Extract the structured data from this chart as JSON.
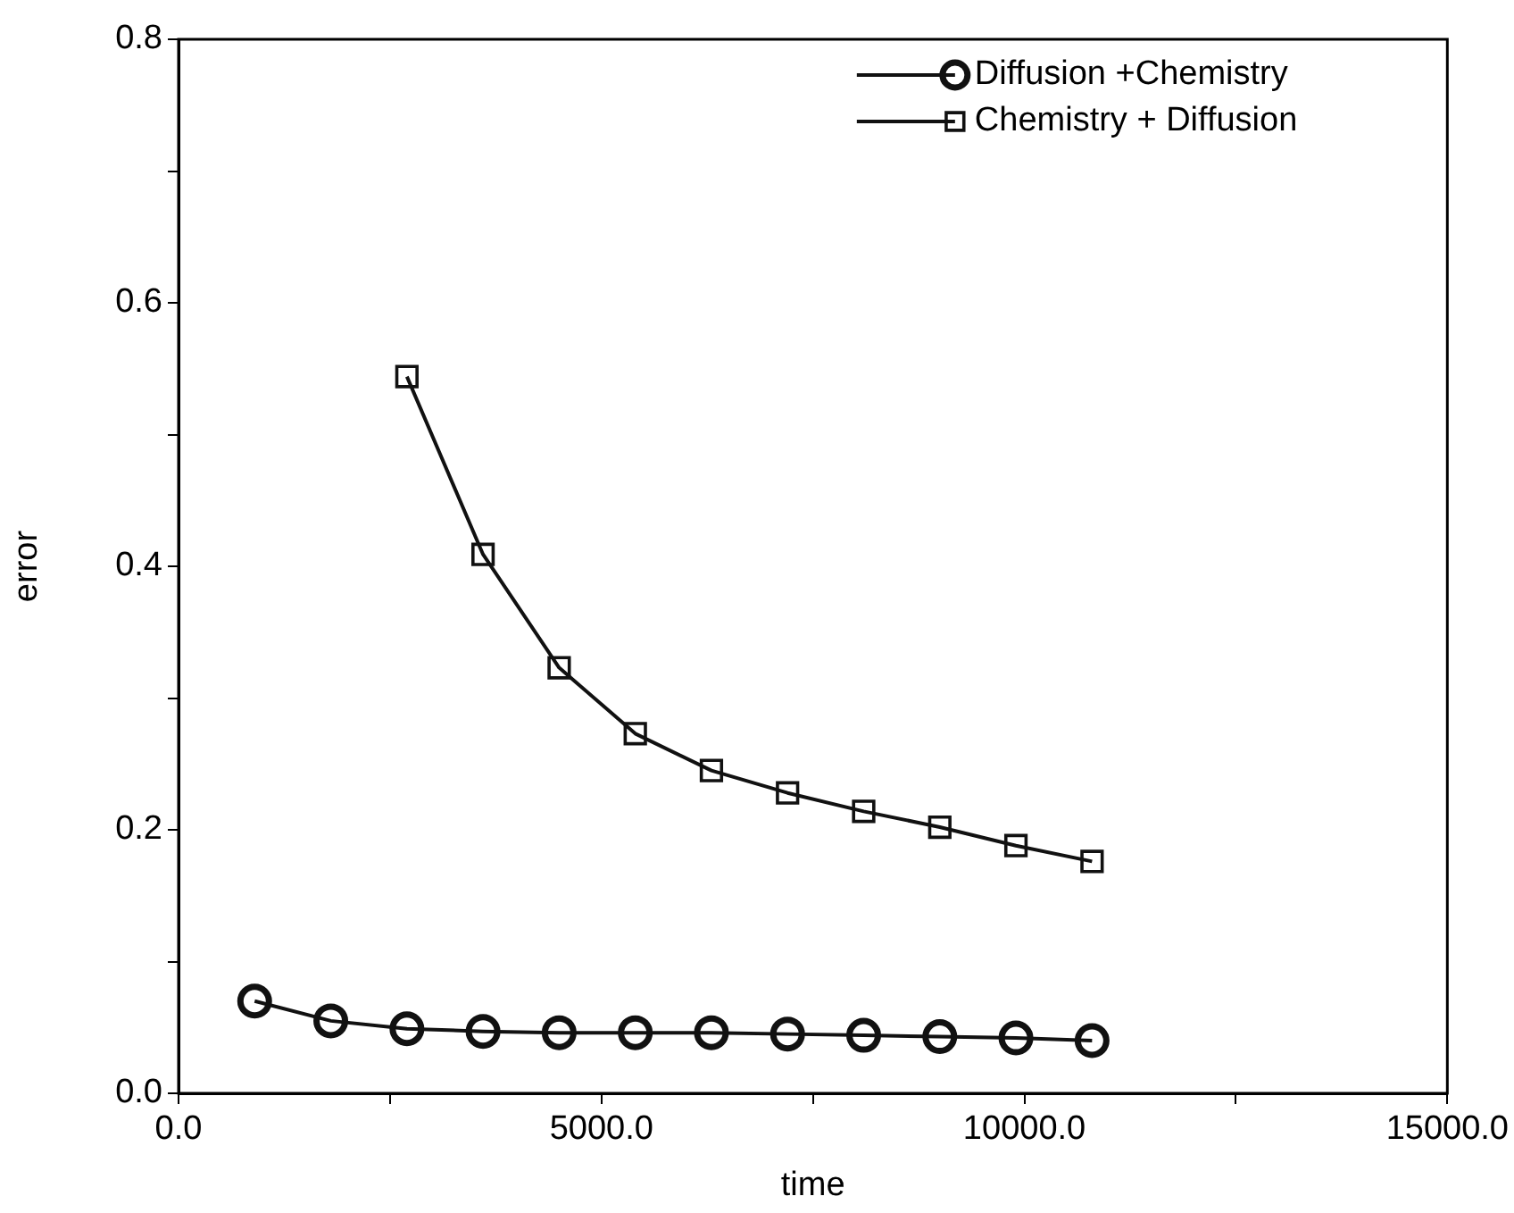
{
  "chart_data": {
    "type": "line",
    "xlabel": "time",
    "ylabel": "error",
    "xlim": [
      0,
      15000
    ],
    "ylim": [
      0,
      0.8
    ],
    "xticks": [
      {
        "value": 0,
        "label": "0.0"
      },
      {
        "value": 2500,
        "label": null
      },
      {
        "value": 5000,
        "label": "5000.0"
      },
      {
        "value": 7500,
        "label": null
      },
      {
        "value": 10000,
        "label": "10000.0"
      },
      {
        "value": 12500,
        "label": null
      },
      {
        "value": 15000,
        "label": "15000.0"
      }
    ],
    "yticks": [
      {
        "value": 0,
        "label": "0.0"
      },
      {
        "value": 0.1,
        "label": null
      },
      {
        "value": 0.2,
        "label": "0.2"
      },
      {
        "value": 0.3,
        "label": null
      },
      {
        "value": 0.4,
        "label": "0.4"
      },
      {
        "value": 0.5,
        "label": null
      },
      {
        "value": 0.6,
        "label": "0.6"
      },
      {
        "value": 0.7,
        "label": null
      },
      {
        "value": 0.8,
        "label": "0.8"
      }
    ],
    "grid": false,
    "legend": "top right",
    "line_style": "solid",
    "series": [
      {
        "name": "Diffusion +Chemistry",
        "color": "#111111",
        "marker": "circle",
        "x": [
          900,
          1800,
          2700,
          3600,
          4500,
          5400,
          6300,
          7200,
          8100,
          9000,
          9900,
          10800
        ],
        "values": [
          0.07,
          0.055,
          0.049,
          0.047,
          0.046,
          0.046,
          0.046,
          0.045,
          0.044,
          0.043,
          0.042,
          0.04
        ]
      },
      {
        "name": "Chemistry + Diffusion",
        "color": "#111111",
        "marker": "square",
        "x": [
          2700,
          3600,
          4500,
          5400,
          6300,
          7200,
          8100,
          9000,
          9900,
          10800
        ],
        "values": [
          0.544,
          0.409,
          0.323,
          0.273,
          0.245,
          0.228,
          0.214,
          0.202,
          0.188,
          0.176
        ]
      }
    ]
  }
}
